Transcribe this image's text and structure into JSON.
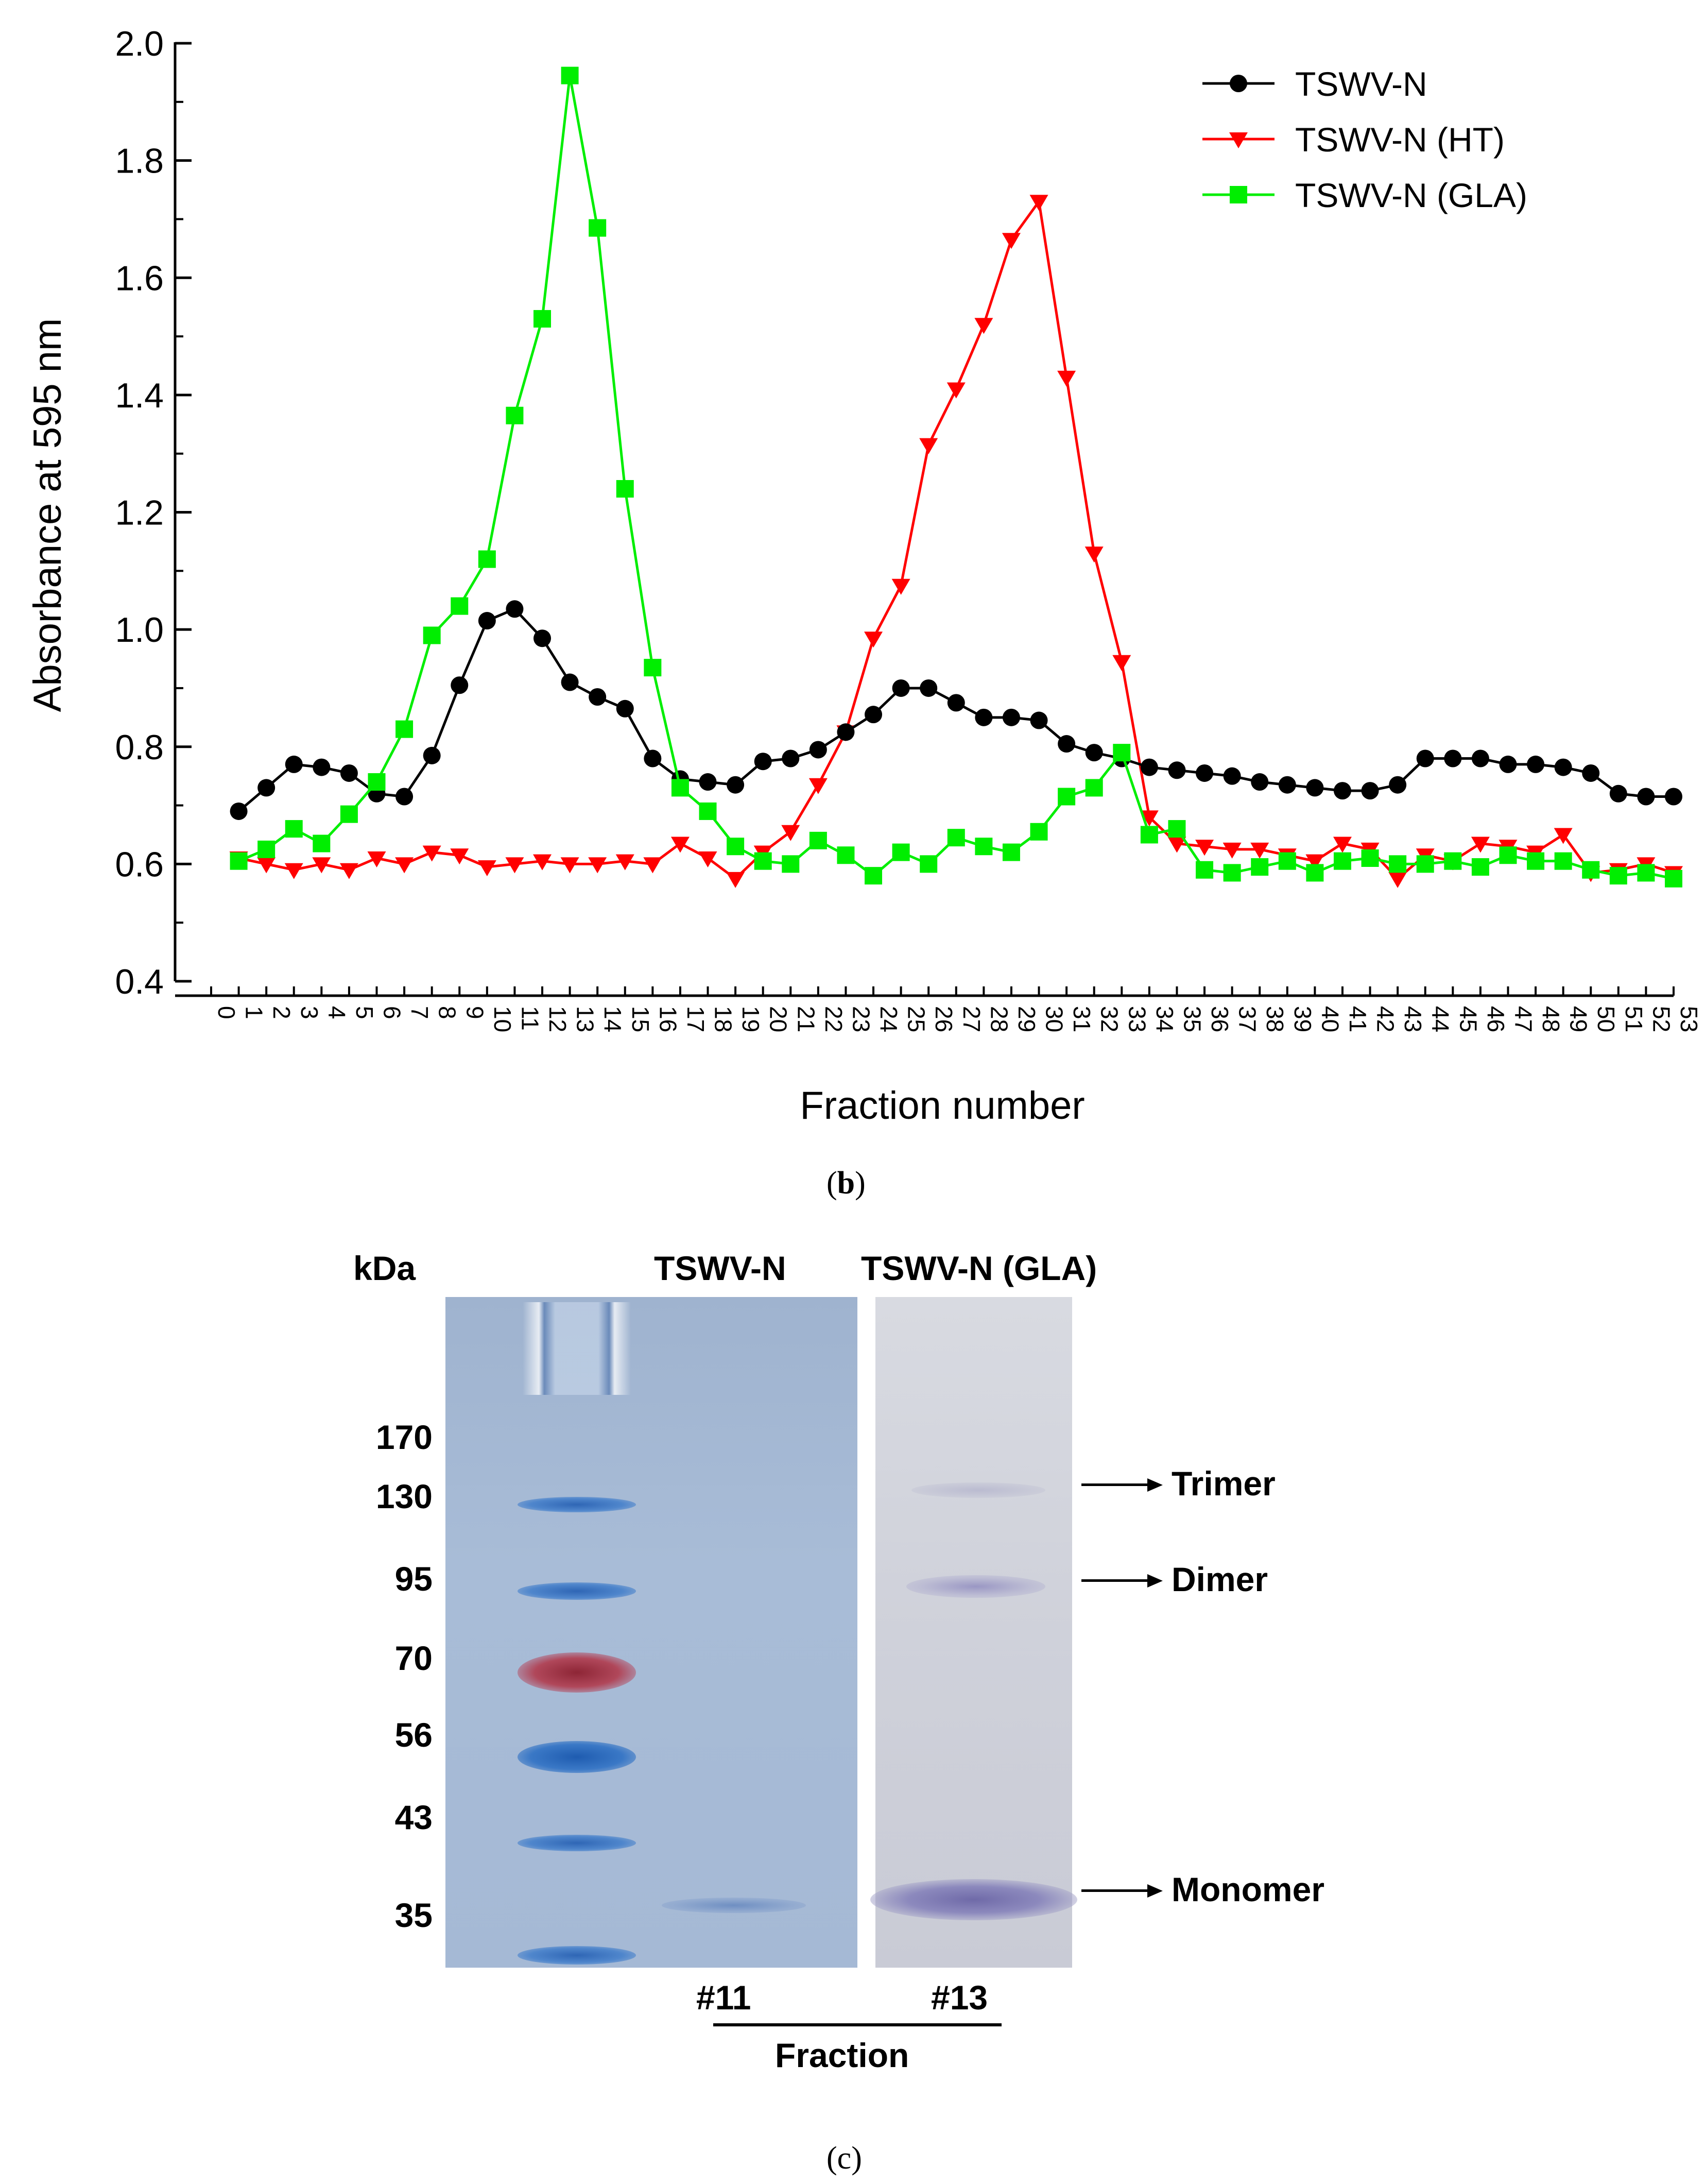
{
  "chart_data": {
    "type": "line",
    "xlabel": "Fraction number",
    "ylabel": "Absorbance at 595 nm",
    "ylim": [
      0.4,
      2.0
    ],
    "xlim": [
      0,
      53
    ],
    "yticks": [
      "0.4",
      "0.6",
      "0.8",
      "1.0",
      "1.2",
      "1.4",
      "1.6",
      "1.8",
      "2.0"
    ],
    "xticks": [
      "0",
      "1",
      "2",
      "3",
      "4",
      "5",
      "6",
      "7",
      "8",
      "9",
      "10",
      "11",
      "12",
      "13",
      "14",
      "15",
      "16",
      "17",
      "18",
      "19",
      "20",
      "21",
      "22",
      "23",
      "24",
      "25",
      "26",
      "27",
      "28",
      "29",
      "30",
      "31",
      "32",
      "33",
      "34",
      "35",
      "36",
      "37",
      "38",
      "39",
      "40",
      "41",
      "42",
      "43",
      "44",
      "45",
      "46",
      "47",
      "48",
      "49",
      "50",
      "51",
      "52",
      "53"
    ],
    "legend_position": "top-right",
    "series": [
      {
        "name": "TSWV-N",
        "color": "#000000",
        "marker": "circle",
        "x": [
          1,
          2,
          3,
          4,
          5,
          6,
          7,
          8,
          9,
          10,
          11,
          12,
          13,
          14,
          15,
          16,
          17,
          18,
          19,
          20,
          21,
          22,
          23,
          24,
          25,
          26,
          27,
          28,
          29,
          30,
          31,
          32,
          33,
          34,
          35,
          36,
          37,
          38,
          39,
          40,
          41,
          42,
          43,
          44,
          45,
          46,
          47,
          48,
          49,
          50,
          51,
          52,
          53
        ],
        "values": [
          0.69,
          0.73,
          0.77,
          0.765,
          0.755,
          0.72,
          0.715,
          0.785,
          0.905,
          1.015,
          1.035,
          0.985,
          0.91,
          0.885,
          0.865,
          0.78,
          0.745,
          0.74,
          0.735,
          0.775,
          0.78,
          0.795,
          0.825,
          0.855,
          0.9,
          0.9,
          0.875,
          0.85,
          0.85,
          0.845,
          0.805,
          0.79,
          0.78,
          0.765,
          0.76,
          0.755,
          0.75,
          0.74,
          0.735,
          0.73,
          0.725,
          0.725,
          0.735,
          0.78,
          0.78,
          0.78,
          0.77,
          0.77,
          0.765,
          0.755,
          0.72,
          0.715,
          0.715
        ]
      },
      {
        "name": "TSWV-N (HT)",
        "color": "#ff0000",
        "marker": "triangle-down",
        "x": [
          1,
          2,
          3,
          4,
          5,
          6,
          7,
          8,
          9,
          10,
          11,
          12,
          13,
          14,
          15,
          16,
          17,
          18,
          19,
          20,
          21,
          22,
          23,
          24,
          25,
          26,
          27,
          28,
          29,
          30,
          31,
          32,
          33,
          34,
          35,
          36,
          37,
          38,
          39,
          40,
          41,
          42,
          43,
          44,
          45,
          46,
          47,
          48,
          49,
          50,
          51,
          52,
          53
        ],
        "values": [
          0.61,
          0.6,
          0.59,
          0.6,
          0.59,
          0.61,
          0.6,
          0.62,
          0.615,
          0.595,
          0.6,
          0.605,
          0.6,
          0.6,
          0.605,
          0.6,
          0.635,
          0.61,
          0.575,
          0.62,
          0.655,
          0.735,
          0.825,
          0.985,
          1.075,
          1.315,
          1.41,
          1.52,
          1.665,
          1.73,
          1.43,
          1.13,
          0.945,
          0.68,
          0.635,
          0.63,
          0.625,
          0.625,
          0.615,
          0.605,
          0.635,
          0.625,
          0.575,
          0.615,
          0.605,
          0.635,
          0.63,
          0.62,
          0.65,
          0.585,
          0.59,
          0.6,
          0.585
        ]
      },
      {
        "name": "TSWV-N (GLA)",
        "color": "#00ee00",
        "marker": "square",
        "x": [
          1,
          2,
          3,
          4,
          5,
          6,
          7,
          8,
          9,
          10,
          11,
          12,
          13,
          14,
          15,
          16,
          17,
          18,
          19,
          20,
          21,
          22,
          23,
          24,
          25,
          26,
          27,
          28,
          29,
          30,
          31,
          32,
          33,
          34,
          35,
          36,
          37,
          38,
          39,
          40,
          41,
          42,
          43,
          44,
          45,
          46,
          47,
          48,
          49,
          50,
          51,
          52,
          53
        ],
        "values": [
          0.605,
          0.625,
          0.66,
          0.635,
          0.685,
          0.74,
          0.83,
          0.99,
          1.04,
          1.12,
          1.365,
          1.53,
          1.945,
          1.685,
          1.24,
          0.935,
          0.73,
          0.69,
          0.63,
          0.605,
          0.6,
          0.64,
          0.615,
          0.58,
          0.62,
          0.6,
          0.645,
          0.63,
          0.62,
          0.655,
          0.715,
          0.73,
          0.79,
          0.65,
          0.66,
          0.59,
          0.585,
          0.595,
          0.605,
          0.585,
          0.605,
          0.61,
          0.6,
          0.6,
          0.605,
          0.595,
          0.615,
          0.605,
          0.605,
          0.59,
          0.58,
          0.585,
          0.575
        ]
      }
    ]
  },
  "panel_labels": {
    "b": "b",
    "c": "c"
  },
  "gel": {
    "kda_header": "kDa",
    "lane_labels": [
      "TSWV-N",
      "TSWV-N (GLA)"
    ],
    "mw_markers": [
      "170",
      "130",
      "95",
      "70",
      "56",
      "43",
      "35"
    ],
    "band_annotations": [
      "Trimer",
      "Dimer",
      "Monomer"
    ],
    "fractions": [
      "#11",
      "#13"
    ],
    "fraction_label": "Fraction",
    "colors": {
      "ladder_blue": "#2f66b5",
      "ladder_red": "#a8343f",
      "sample_purple": "#7e7bb3"
    }
  }
}
